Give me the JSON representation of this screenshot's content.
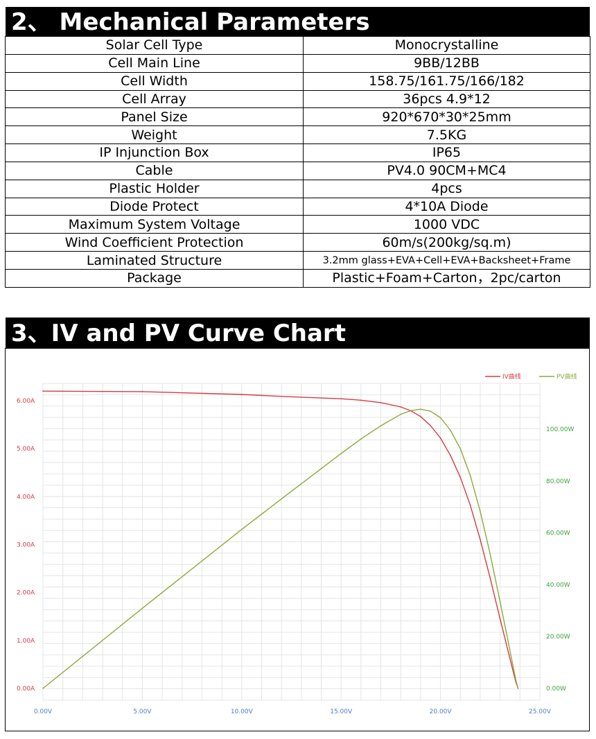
{
  "sections": {
    "mechanical": {
      "title": "2、 Mechanical Parameters"
    },
    "chart": {
      "title": "3、IV and PV Curve Chart"
    }
  },
  "params": [
    {
      "label": "Solar Cell Type",
      "value": "Monocrystalline"
    },
    {
      "label": "Cell Main Line",
      "value": "9BB/12BB"
    },
    {
      "label": "Cell Width",
      "value": "158.75/161.75/166/182"
    },
    {
      "label": "Cell Array",
      "value": "36pcs 4.9*12"
    },
    {
      "label": "Panel Size",
      "value": "920*670*30*25mm"
    },
    {
      "label": "Weight",
      "value": "7.5KG"
    },
    {
      "label": "IP Injunction Box",
      "value": "IP65"
    },
    {
      "label": "Cable",
      "value": "PV4.0 90CM+MC4"
    },
    {
      "label": "Plastic Holder",
      "value": "4pcs"
    },
    {
      "label": "Diode Protect",
      "value": "4*10A Diode"
    },
    {
      "label": "Maximum System Voltage",
      "value": "1000 VDC"
    },
    {
      "label": "Wind Coefficient Protection",
      "value": "60m/s(200kg/sq.m)"
    },
    {
      "label": "Laminated Structure",
      "value": "3.2mm glass+EVA+Cell+EVA+Backsheet+Frame"
    },
    {
      "label": "Package",
      "value": "Plastic+Foam+Carton，2pc/carton"
    }
  ],
  "chart_data": {
    "type": "line",
    "title": "",
    "xlabel": "",
    "ylabel": "",
    "y2label": "",
    "xlim": [
      0,
      25
    ],
    "ylim": [
      0,
      6.5
    ],
    "y2lim": [
      0,
      113
    ],
    "grid": true,
    "legend": "top-right",
    "x_ticks": [
      "0.00V",
      "5.00V",
      "10.00V",
      "15.00V",
      "20.00V",
      "25.00V"
    ],
    "y_ticks": [
      "0.00A",
      "1.00A",
      "2.00A",
      "3.00A",
      "4.00A",
      "5.00A",
      "6.00A"
    ],
    "y2_ticks": [
      "0.00W",
      "20.00W",
      "40.00W",
      "60.00W",
      "80.00W",
      "100.00W"
    ],
    "series": [
      {
        "name": "IV曲线",
        "color": "#d9393f",
        "axis": "left",
        "x": [
          0,
          5,
          10,
          12,
          15,
          16,
          17,
          18,
          18.5,
          19,
          19.5,
          20,
          20.5,
          21,
          21.5,
          22,
          22.5,
          23,
          23.3,
          23.6,
          23.8,
          23.9
        ],
        "y": [
          6.2,
          6.19,
          6.13,
          6.09,
          6.04,
          6.01,
          5.96,
          5.87,
          5.79,
          5.67,
          5.48,
          5.22,
          4.86,
          4.4,
          3.82,
          3.1,
          2.3,
          1.45,
          0.95,
          0.45,
          0.12,
          0.0
        ]
      },
      {
        "name": "PV曲线",
        "color": "#8aaa3a",
        "axis": "right",
        "x": [
          0,
          5,
          10,
          12,
          15,
          16,
          17,
          18,
          18.5,
          19,
          19.5,
          20,
          20.5,
          21,
          21.5,
          22,
          22.5,
          23,
          23.3,
          23.6,
          23.8,
          23.9
        ],
        "y": [
          0,
          30.9,
          61.3,
          73.1,
          90.6,
          96.2,
          101.3,
          105.7,
          107.1,
          107.7,
          106.9,
          104.4,
          99.6,
          92.4,
          82.1,
          68.2,
          51.8,
          33.4,
          22.1,
          10.6,
          2.9,
          0.0
        ]
      }
    ]
  }
}
